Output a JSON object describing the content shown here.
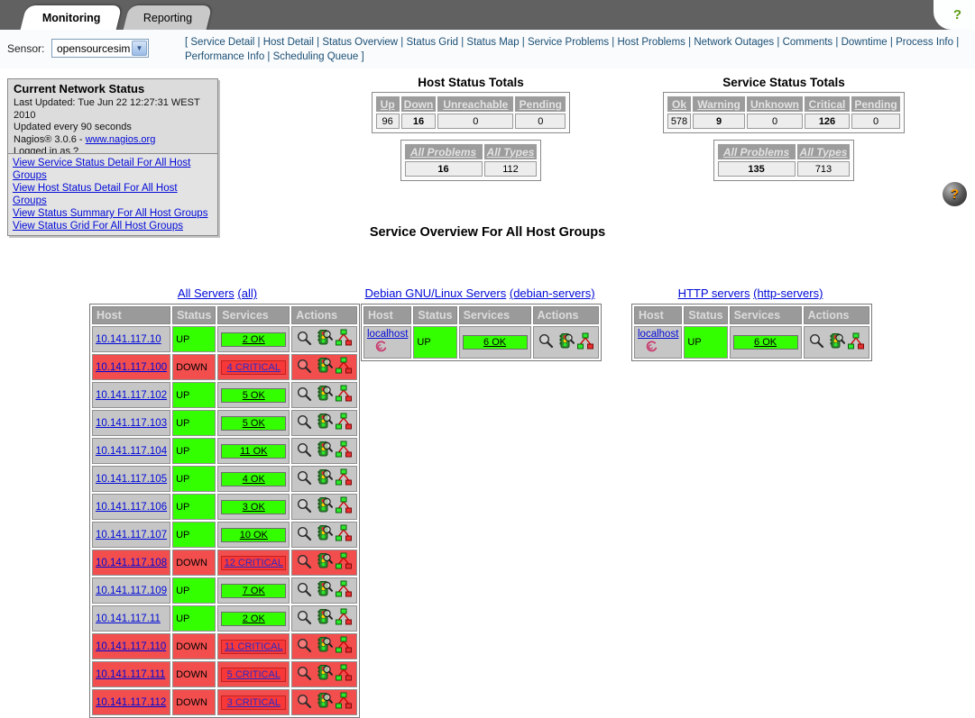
{
  "tabs": {
    "monitoring": "Monitoring",
    "reporting": "Reporting",
    "help": "?"
  },
  "sensor": {
    "label": "Sensor:",
    "selected": "opensourcesim"
  },
  "nav": {
    "open_bracket": "[ ",
    "close_bracket": " ]",
    "separator": " | ",
    "links": [
      "Service Detail",
      "Host Detail",
      "Status Overview",
      "Status Grid",
      "Status Map",
      "Service Problems",
      "Host Problems",
      "Network Outages",
      "Comments",
      "Downtime",
      "Process Info",
      "Performance Info",
      "Scheduling Queue"
    ]
  },
  "status_box": {
    "title": "Current Network Status",
    "last_updated": "Last Updated: Tue Jun 22 12:27:31 WEST 2010",
    "update_interval": "Updated every 90 seconds",
    "version_prefix": "Nagios® 3.0.6 - ",
    "version_link": "www.nagios.org",
    "logged_in": "Logged in as ?"
  },
  "view_links": [
    "View Service Status Detail For All Host Groups",
    "View Host Status Detail For All Host Groups",
    "View Status Summary For All Host Groups",
    "View Status Grid For All Host Groups"
  ],
  "host_totals": {
    "title": "Host Status Totals",
    "columns": [
      "Up",
      "Down",
      "Unreachable",
      "Pending"
    ],
    "values": [
      96,
      16,
      0,
      0
    ],
    "problems_label": "All Problems",
    "types_label": "All Types",
    "problems_value": 16,
    "types_value": 112
  },
  "service_totals": {
    "title": "Service Status Totals",
    "columns": [
      "Ok",
      "Warning",
      "Unknown",
      "Critical",
      "Pending"
    ],
    "values": [
      578,
      9,
      0,
      126,
      0
    ],
    "problems_label": "All Problems",
    "types_label": "All Types",
    "problems_value": 135,
    "types_value": 713
  },
  "help_ball": "?",
  "overview": {
    "title": "Service Overview For All Host Groups",
    "table_headers": [
      "Host",
      "Status",
      "Services",
      "Actions"
    ],
    "action_icons": [
      "service-details-magnifier-icon",
      "status-traffic-light-icon",
      "status-map-tree-icon"
    ],
    "groups": [
      {
        "name": "All Servers",
        "alias_display": "(all)",
        "hosts": [
          {
            "host": "10.141.117.10",
            "status": "UP",
            "services": "2 OK",
            "down": false,
            "debian_icon": false
          },
          {
            "host": "10.141.117.100",
            "status": "DOWN",
            "services": "4 CRITICAL",
            "down": true,
            "debian_icon": false
          },
          {
            "host": "10.141.117.102",
            "status": "UP",
            "services": "5 OK",
            "down": false,
            "debian_icon": false
          },
          {
            "host": "10.141.117.103",
            "status": "UP",
            "services": "5 OK",
            "down": false,
            "debian_icon": false
          },
          {
            "host": "10.141.117.104",
            "status": "UP",
            "services": "11 OK",
            "down": false,
            "debian_icon": false
          },
          {
            "host": "10.141.117.105",
            "status": "UP",
            "services": "4 OK",
            "down": false,
            "debian_icon": false
          },
          {
            "host": "10.141.117.106",
            "status": "UP",
            "services": "3 OK",
            "down": false,
            "debian_icon": false
          },
          {
            "host": "10.141.117.107",
            "status": "UP",
            "services": "10 OK",
            "down": false,
            "debian_icon": false
          },
          {
            "host": "10.141.117.108",
            "status": "DOWN",
            "services": "12 CRITICAL",
            "down": true,
            "debian_icon": false
          },
          {
            "host": "10.141.117.109",
            "status": "UP",
            "services": "7 OK",
            "down": false,
            "debian_icon": false
          },
          {
            "host": "10.141.117.11",
            "status": "UP",
            "services": "2 OK",
            "down": false,
            "debian_icon": false
          },
          {
            "host": "10.141.117.110",
            "status": "DOWN",
            "services": "11 CRITICAL",
            "down": true,
            "debian_icon": false
          },
          {
            "host": "10.141.117.111",
            "status": "DOWN",
            "services": "5 CRITICAL",
            "down": true,
            "debian_icon": false
          },
          {
            "host": "10.141.117.112",
            "status": "DOWN",
            "services": "3 CRITICAL",
            "down": true,
            "debian_icon": false
          }
        ]
      },
      {
        "name": "Debian GNU/Linux Servers",
        "alias_display": "(debian-servers)",
        "hosts": [
          {
            "host": "localhost",
            "status": "UP",
            "services": "6 OK",
            "down": false,
            "debian_icon": true
          }
        ]
      },
      {
        "name": "HTTP servers",
        "alias_display": "(http-servers)",
        "hosts": [
          {
            "host": "localhost",
            "status": "UP",
            "services": "6 OK",
            "down": false,
            "debian_icon": true
          }
        ]
      }
    ]
  },
  "colors": {
    "up_ok_green": "#33FF00",
    "down_row_red": "#F24E4E",
    "critical_red": "#F83838",
    "warning_yellow": "#FFFF00",
    "problem_orange": "#FF9900",
    "header_gray": "#9A9A9A",
    "link_blue": "#0009D6",
    "tab_bar_gray": "#616161"
  }
}
